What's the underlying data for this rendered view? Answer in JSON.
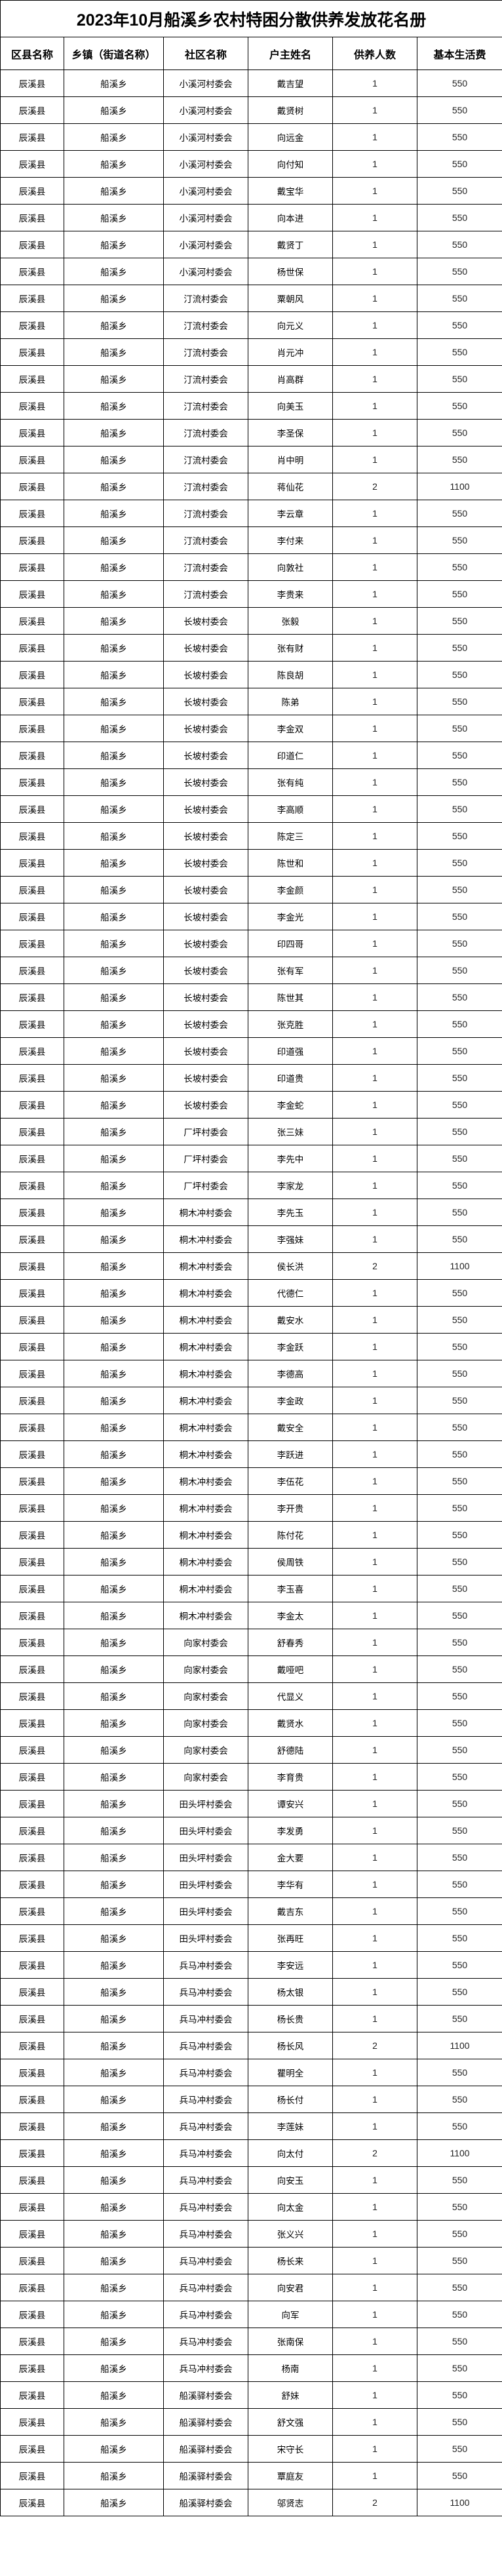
{
  "title": "2023年10月船溪乡农村特困分散供养发放花名册",
  "columns": [
    "区县名称",
    "乡镇（街道名称）",
    "社区名称",
    "户主姓名",
    "供养人数",
    "基本生活费"
  ],
  "rows": [
    [
      "辰溪县",
      "船溪乡",
      "小溪河村委会",
      "戴吉望",
      "1",
      "550"
    ],
    [
      "辰溪县",
      "船溪乡",
      "小溪河村委会",
      "戴贤树",
      "1",
      "550"
    ],
    [
      "辰溪县",
      "船溪乡",
      "小溪河村委会",
      "向远金",
      "1",
      "550"
    ],
    [
      "辰溪县",
      "船溪乡",
      "小溪河村委会",
      "向付知",
      "1",
      "550"
    ],
    [
      "辰溪县",
      "船溪乡",
      "小溪河村委会",
      "戴宝华",
      "1",
      "550"
    ],
    [
      "辰溪县",
      "船溪乡",
      "小溪河村委会",
      "向本进",
      "1",
      "550"
    ],
    [
      "辰溪县",
      "船溪乡",
      "小溪河村委会",
      "戴贤丁",
      "1",
      "550"
    ],
    [
      "辰溪县",
      "船溪乡",
      "小溪河村委会",
      "杨世保",
      "1",
      "550"
    ],
    [
      "辰溪县",
      "船溪乡",
      "汀流村委会",
      "粟朝风",
      "1",
      "550"
    ],
    [
      "辰溪县",
      "船溪乡",
      "汀流村委会",
      "向元义",
      "1",
      "550"
    ],
    [
      "辰溪县",
      "船溪乡",
      "汀流村委会",
      "肖元冲",
      "1",
      "550"
    ],
    [
      "辰溪县",
      "船溪乡",
      "汀流村委会",
      "肖高群",
      "1",
      "550"
    ],
    [
      "辰溪县",
      "船溪乡",
      "汀流村委会",
      "向美玉",
      "1",
      "550"
    ],
    [
      "辰溪县",
      "船溪乡",
      "汀流村委会",
      "李圣保",
      "1",
      "550"
    ],
    [
      "辰溪县",
      "船溪乡",
      "汀流村委会",
      "肖中明",
      "1",
      "550"
    ],
    [
      "辰溪县",
      "船溪乡",
      "汀流村委会",
      "蒋仙花",
      "2",
      "1100"
    ],
    [
      "辰溪县",
      "船溪乡",
      "汀流村委会",
      "李云章",
      "1",
      "550"
    ],
    [
      "辰溪县",
      "船溪乡",
      "汀流村委会",
      "李付来",
      "1",
      "550"
    ],
    [
      "辰溪县",
      "船溪乡",
      "汀流村委会",
      "向敦社",
      "1",
      "550"
    ],
    [
      "辰溪县",
      "船溪乡",
      "汀流村委会",
      "李贵来",
      "1",
      "550"
    ],
    [
      "辰溪县",
      "船溪乡",
      "长坡村委会",
      "张毅",
      "1",
      "550"
    ],
    [
      "辰溪县",
      "船溪乡",
      "长坡村委会",
      "张有财",
      "1",
      "550"
    ],
    [
      "辰溪县",
      "船溪乡",
      "长坡村委会",
      "陈良胡",
      "1",
      "550"
    ],
    [
      "辰溪县",
      "船溪乡",
      "长坡村委会",
      "陈弟",
      "1",
      "550"
    ],
    [
      "辰溪县",
      "船溪乡",
      "长坡村委会",
      "李金双",
      "1",
      "550"
    ],
    [
      "辰溪县",
      "船溪乡",
      "长坡村委会",
      "印道仁",
      "1",
      "550"
    ],
    [
      "辰溪县",
      "船溪乡",
      "长坡村委会",
      "张有纯",
      "1",
      "550"
    ],
    [
      "辰溪县",
      "船溪乡",
      "长坡村委会",
      "李高顺",
      "1",
      "550"
    ],
    [
      "辰溪县",
      "船溪乡",
      "长坡村委会",
      "陈定三",
      "1",
      "550"
    ],
    [
      "辰溪县",
      "船溪乡",
      "长坡村委会",
      "陈世和",
      "1",
      "550"
    ],
    [
      "辰溪县",
      "船溪乡",
      "长坡村委会",
      "李金颜",
      "1",
      "550"
    ],
    [
      "辰溪县",
      "船溪乡",
      "长坡村委会",
      "李金光",
      "1",
      "550"
    ],
    [
      "辰溪县",
      "船溪乡",
      "长坡村委会",
      "印四哥",
      "1",
      "550"
    ],
    [
      "辰溪县",
      "船溪乡",
      "长坡村委会",
      "张有军",
      "1",
      "550"
    ],
    [
      "辰溪县",
      "船溪乡",
      "长坡村委会",
      "陈世其",
      "1",
      "550"
    ],
    [
      "辰溪县",
      "船溪乡",
      "长坡村委会",
      "张克胜",
      "1",
      "550"
    ],
    [
      "辰溪县",
      "船溪乡",
      "长坡村委会",
      "印道强",
      "1",
      "550"
    ],
    [
      "辰溪县",
      "船溪乡",
      "长坡村委会",
      "印道贵",
      "1",
      "550"
    ],
    [
      "辰溪县",
      "船溪乡",
      "长坡村委会",
      "李金蛇",
      "1",
      "550"
    ],
    [
      "辰溪县",
      "船溪乡",
      "厂坪村委会",
      "张三妹",
      "1",
      "550"
    ],
    [
      "辰溪县",
      "船溪乡",
      "厂坪村委会",
      "李先中",
      "1",
      "550"
    ],
    [
      "辰溪县",
      "船溪乡",
      "厂坪村委会",
      "李家龙",
      "1",
      "550"
    ],
    [
      "辰溪县",
      "船溪乡",
      "桐木冲村委会",
      "李先玉",
      "1",
      "550"
    ],
    [
      "辰溪县",
      "船溪乡",
      "桐木冲村委会",
      "李强妹",
      "1",
      "550"
    ],
    [
      "辰溪县",
      "船溪乡",
      "桐木冲村委会",
      "侯长洪",
      "2",
      "1100"
    ],
    [
      "辰溪县",
      "船溪乡",
      "桐木冲村委会",
      "代德仁",
      "1",
      "550"
    ],
    [
      "辰溪县",
      "船溪乡",
      "桐木冲村委会",
      "戴安水",
      "1",
      "550"
    ],
    [
      "辰溪县",
      "船溪乡",
      "桐木冲村委会",
      "李金跃",
      "1",
      "550"
    ],
    [
      "辰溪县",
      "船溪乡",
      "桐木冲村委会",
      "李德高",
      "1",
      "550"
    ],
    [
      "辰溪县",
      "船溪乡",
      "桐木冲村委会",
      "李金政",
      "1",
      "550"
    ],
    [
      "辰溪县",
      "船溪乡",
      "桐木冲村委会",
      "戴安全",
      "1",
      "550"
    ],
    [
      "辰溪县",
      "船溪乡",
      "桐木冲村委会",
      "李跃进",
      "1",
      "550"
    ],
    [
      "辰溪县",
      "船溪乡",
      "桐木冲村委会",
      "李伍花",
      "1",
      "550"
    ],
    [
      "辰溪县",
      "船溪乡",
      "桐木冲村委会",
      "李开贵",
      "1",
      "550"
    ],
    [
      "辰溪县",
      "船溪乡",
      "桐木冲村委会",
      "陈付花",
      "1",
      "550"
    ],
    [
      "辰溪县",
      "船溪乡",
      "桐木冲村委会",
      "侯周铁",
      "1",
      "550"
    ],
    [
      "辰溪县",
      "船溪乡",
      "桐木冲村委会",
      "李玉喜",
      "1",
      "550"
    ],
    [
      "辰溪县",
      "船溪乡",
      "桐木冲村委会",
      "李金太",
      "1",
      "550"
    ],
    [
      "辰溪县",
      "船溪乡",
      "向家村委会",
      "舒春秀",
      "1",
      "550"
    ],
    [
      "辰溪县",
      "船溪乡",
      "向家村委会",
      "戴哑吧",
      "1",
      "550"
    ],
    [
      "辰溪县",
      "船溪乡",
      "向家村委会",
      "代显义",
      "1",
      "550"
    ],
    [
      "辰溪县",
      "船溪乡",
      "向家村委会",
      "戴贤水",
      "1",
      "550"
    ],
    [
      "辰溪县",
      "船溪乡",
      "向家村委会",
      "舒德陆",
      "1",
      "550"
    ],
    [
      "辰溪县",
      "船溪乡",
      "向家村委会",
      "李育贵",
      "1",
      "550"
    ],
    [
      "辰溪县",
      "船溪乡",
      "田头坪村委会",
      "谭安兴",
      "1",
      "550"
    ],
    [
      "辰溪县",
      "船溪乡",
      "田头坪村委会",
      "李发勇",
      "1",
      "550"
    ],
    [
      "辰溪县",
      "船溪乡",
      "田头坪村委会",
      "金大要",
      "1",
      "550"
    ],
    [
      "辰溪县",
      "船溪乡",
      "田头坪村委会",
      "李华有",
      "1",
      "550"
    ],
    [
      "辰溪县",
      "船溪乡",
      "田头坪村委会",
      "戴吉东",
      "1",
      "550"
    ],
    [
      "辰溪县",
      "船溪乡",
      "田头坪村委会",
      "张再旺",
      "1",
      "550"
    ],
    [
      "辰溪县",
      "船溪乡",
      "兵马冲村委会",
      "李安远",
      "1",
      "550"
    ],
    [
      "辰溪县",
      "船溪乡",
      "兵马冲村委会",
      "杨太银",
      "1",
      "550"
    ],
    [
      "辰溪县",
      "船溪乡",
      "兵马冲村委会",
      "杨长贵",
      "1",
      "550"
    ],
    [
      "辰溪县",
      "船溪乡",
      "兵马冲村委会",
      "杨长风",
      "2",
      "1100"
    ],
    [
      "辰溪县",
      "船溪乡",
      "兵马冲村委会",
      "瞿明全",
      "1",
      "550"
    ],
    [
      "辰溪县",
      "船溪乡",
      "兵马冲村委会",
      "杨长付",
      "1",
      "550"
    ],
    [
      "辰溪县",
      "船溪乡",
      "兵马冲村委会",
      "李莲妹",
      "1",
      "550"
    ],
    [
      "辰溪县",
      "船溪乡",
      "兵马冲村委会",
      "向太付",
      "2",
      "1100"
    ],
    [
      "辰溪县",
      "船溪乡",
      "兵马冲村委会",
      "向安玉",
      "1",
      "550"
    ],
    [
      "辰溪县",
      "船溪乡",
      "兵马冲村委会",
      "向太金",
      "1",
      "550"
    ],
    [
      "辰溪县",
      "船溪乡",
      "兵马冲村委会",
      "张义兴",
      "1",
      "550"
    ],
    [
      "辰溪县",
      "船溪乡",
      "兵马冲村委会",
      "杨长来",
      "1",
      "550"
    ],
    [
      "辰溪县",
      "船溪乡",
      "兵马冲村委会",
      "向安君",
      "1",
      "550"
    ],
    [
      "辰溪县",
      "船溪乡",
      "兵马冲村委会",
      "向军",
      "1",
      "550"
    ],
    [
      "辰溪县",
      "船溪乡",
      "兵马冲村委会",
      "张南保",
      "1",
      "550"
    ],
    [
      "辰溪县",
      "船溪乡",
      "兵马冲村委会",
      "杨南",
      "1",
      "550"
    ],
    [
      "辰溪县",
      "船溪乡",
      "船溪驿村委会",
      "舒妹",
      "1",
      "550"
    ],
    [
      "辰溪县",
      "船溪乡",
      "船溪驿村委会",
      "舒文强",
      "1",
      "550"
    ],
    [
      "辰溪县",
      "船溪乡",
      "船溪驿村委会",
      "宋守长",
      "1",
      "550"
    ],
    [
      "辰溪县",
      "船溪乡",
      "船溪驿村委会",
      "覃庭友",
      "1",
      "550"
    ],
    [
      "辰溪县",
      "船溪乡",
      "船溪驿村委会",
      "邬贤志",
      "2",
      "1100"
    ]
  ]
}
